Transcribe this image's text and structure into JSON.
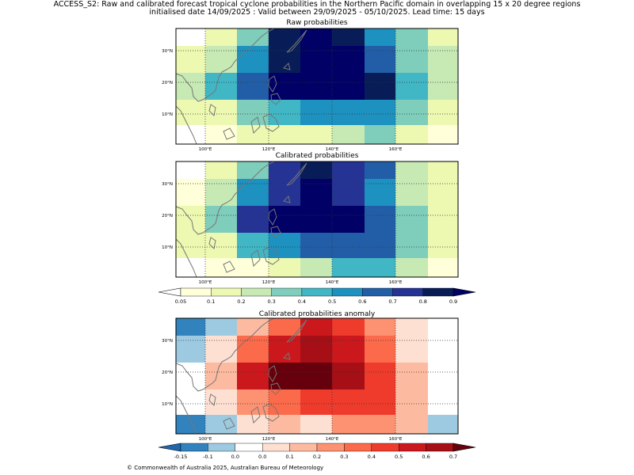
{
  "header": {
    "line1": "ACCESS_S2: Raw and calibrated forecast tropical cyclone probabilities in the Northern Pacific domain in overlapping 15 x 20 degree regions",
    "line2": "initialised date 14/09/2025 :  Valid between 29/09/2025 - 05/10/2025. Lead time: 15 days"
  },
  "axes": {
    "lon_labels": [
      "100°E",
      "120°E",
      "140°E",
      "160°E"
    ],
    "lat_labels": [
      "30°N",
      "20°N",
      "10°N"
    ]
  },
  "panels": [
    {
      "title": "Raw probabilities",
      "scale": "prob",
      "grid": [
        [
          0.02,
          0.15,
          0.35,
          0.85,
          0.95,
          0.8,
          0.55,
          0.35,
          0.15
        ],
        [
          0.15,
          0.25,
          0.55,
          0.85,
          0.95,
          0.95,
          0.65,
          0.35,
          0.25
        ],
        [
          0.25,
          0.45,
          0.65,
          0.95,
          0.95,
          0.95,
          0.85,
          0.45,
          0.25
        ],
        [
          0.15,
          0.15,
          0.35,
          0.45,
          0.55,
          0.55,
          0.55,
          0.35,
          0.15
        ],
        [
          0.02,
          0.07,
          0.15,
          0.15,
          0.15,
          0.25,
          0.35,
          0.15,
          0.07
        ]
      ]
    },
    {
      "title": "Calibrated probabilities",
      "scale": "prob",
      "grid": [
        [
          0.02,
          0.15,
          0.35,
          0.75,
          0.85,
          0.75,
          0.65,
          0.25,
          0.15
        ],
        [
          0.07,
          0.25,
          0.55,
          0.75,
          0.95,
          0.75,
          0.55,
          0.25,
          0.15
        ],
        [
          0.15,
          0.35,
          0.75,
          0.99,
          0.99,
          0.95,
          0.65,
          0.35,
          0.15
        ],
        [
          0.15,
          0.15,
          0.45,
          0.55,
          0.65,
          0.65,
          0.65,
          0.35,
          0.15
        ],
        [
          0.02,
          0.07,
          0.07,
          0.15,
          0.25,
          0.45,
          0.45,
          0.25,
          0.07
        ]
      ]
    },
    {
      "title": "Calibrated probabilities anomaly",
      "scale": "anom",
      "grid": [
        [
          -0.12,
          -0.07,
          0.15,
          0.35,
          0.55,
          0.45,
          0.25,
          0.05,
          -0.02
        ],
        [
          -0.07,
          0.05,
          0.35,
          0.55,
          0.65,
          0.55,
          0.35,
          0.05,
          -0.02
        ],
        [
          -0.02,
          0.15,
          0.55,
          0.75,
          0.75,
          0.65,
          0.45,
          0.15,
          -0.02
        ],
        [
          -0.02,
          0.05,
          0.25,
          0.35,
          0.45,
          0.45,
          0.45,
          0.15,
          -0.02
        ],
        [
          -0.12,
          -0.07,
          0.05,
          0.15,
          0.05,
          0.25,
          0.25,
          0.15,
          -0.07
        ]
      ]
    }
  ],
  "colorbar_prob": {
    "ticks": [
      "0.05",
      "0.1",
      "0.2",
      "0.3",
      "0.4",
      "0.5",
      "0.6",
      "0.7",
      "0.8",
      "0.9"
    ],
    "thresholds": [
      0.05,
      0.1,
      0.2,
      0.3,
      0.4,
      0.5,
      0.6,
      0.7,
      0.8,
      0.9
    ],
    "colors": [
      "#ffffff",
      "#ffffd9",
      "#edf8b1",
      "#c7e9b4",
      "#7fcdbb",
      "#41b6c4",
      "#1d91c0",
      "#225ea8",
      "#253494",
      "#081d58",
      "#000066"
    ]
  },
  "colorbar_anom": {
    "ticks": [
      "-0.15",
      "-0.1",
      "0.0",
      "0.0",
      "0.1",
      "0.2",
      "0.3",
      "0.4",
      "0.5",
      "0.6",
      "0.7"
    ],
    "thresholds": [
      -0.15,
      -0.1,
      -0.05,
      0.05,
      0.1,
      0.2,
      0.3,
      0.4,
      0.5,
      0.6,
      0.7
    ],
    "colors": [
      "#2166ac",
      "#3182bd",
      "#9ecae1",
      "#ffffff",
      "#fee0d2",
      "#fcbba1",
      "#fc9272",
      "#fb6a4a",
      "#ef3b2c",
      "#cb181d",
      "#a50f15",
      "#67000d"
    ]
  },
  "footer": "© Commonwealth of Australia 2025, Australian Bureau of Meteorology"
}
